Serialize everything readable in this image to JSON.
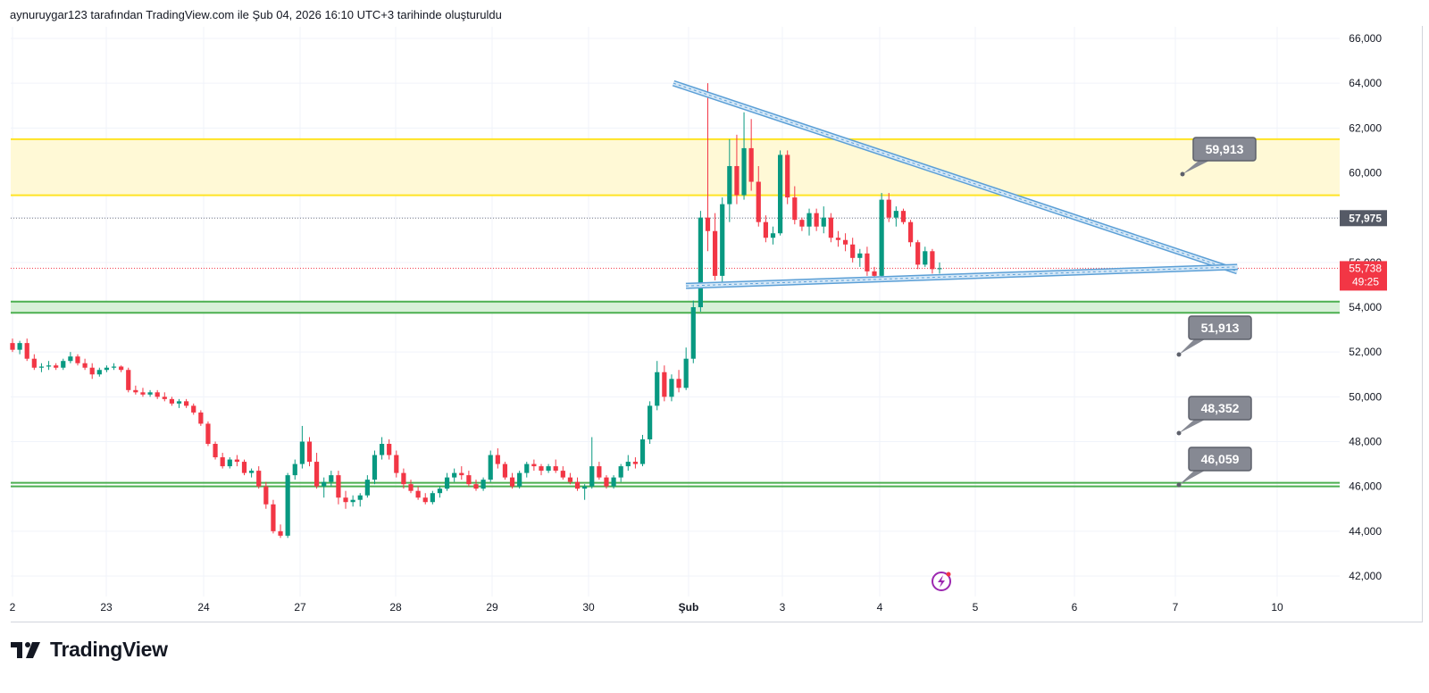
{
  "header": {
    "text": "aynuruygar123 tarafından TradingView.com ile Şub 04, 2026 16:10 UTC+3 tarihinde oluşturuldu"
  },
  "footer": {
    "brand": "TradingView",
    "logo_icon": "tradingview-logo-icon"
  },
  "colors": {
    "up": "#089981",
    "down": "#f23645",
    "resistance_zone": "#fff9d6",
    "resistance_line": "#ffe324",
    "support_zone": "#d8f0d8",
    "support_line": "#4caf50",
    "trendline": "#5b9fd6",
    "label_bg": "#868993"
  },
  "chart_data": {
    "type": "candlestick",
    "price_axis": {
      "ticks": [
        "66,000",
        "64,000",
        "62,000",
        "60,000",
        "58,000",
        "56,000",
        "54,000",
        "52,000",
        "50,000",
        "48,000",
        "46,000",
        "44,000",
        "42,000"
      ],
      "ylim": [
        41200,
        66600
      ]
    },
    "time_axis": {
      "ticks": [
        "2",
        "23",
        "24",
        "27",
        "28",
        "29",
        "30",
        "Şub",
        "3",
        "4",
        "5",
        "6",
        "7",
        "10"
      ]
    },
    "last_close": {
      "price": "55,738",
      "countdown": "49:25"
    },
    "previous_close_marker": "57,975",
    "price_labels": [
      "59,913",
      "51,913",
      "48,352",
      "46,059"
    ],
    "zones": [
      {
        "name": "resistance",
        "low": 59000,
        "high": 61500
      },
      {
        "name": "support",
        "low": 53750,
        "high": 54250
      }
    ],
    "horizontal_levels": [
      46059
    ],
    "triangle": {
      "upper": {
        "from": [
          0,
          64000
        ],
        "to": [
          5.7,
          55600
        ]
      },
      "lower": {
        "from": [
          0,
          54950
        ],
        "to": [
          5.7,
          55800
        ]
      }
    },
    "candles_ohlc": [
      [
        52400,
        52600,
        52000,
        52100
      ],
      [
        52100,
        52500,
        51900,
        52400
      ],
      [
        52400,
        52600,
        51600,
        51700
      ],
      [
        51700,
        51900,
        51200,
        51300
      ],
      [
        51300,
        51500,
        51100,
        51350
      ],
      [
        51350,
        51600,
        51200,
        51400
      ],
      [
        51400,
        51500,
        51200,
        51300
      ],
      [
        51300,
        51700,
        51200,
        51600
      ],
      [
        51600,
        52000,
        51500,
        51800
      ],
      [
        51800,
        51900,
        51400,
        51500
      ],
      [
        51500,
        51700,
        51200,
        51300
      ],
      [
        51300,
        51500,
        50800,
        51000
      ],
      [
        51000,
        51300,
        50900,
        51200
      ],
      [
        51200,
        51400,
        51100,
        51300
      ],
      [
        51300,
        51500,
        51200,
        51350
      ],
      [
        51350,
        51400,
        51100,
        51200
      ],
      [
        51200,
        51300,
        50200,
        50300
      ],
      [
        50300,
        50500,
        50100,
        50200
      ],
      [
        50200,
        50400,
        50000,
        50100
      ],
      [
        50100,
        50300,
        50000,
        50200
      ],
      [
        50200,
        50300,
        49900,
        50000
      ],
      [
        50000,
        50200,
        49800,
        49900
      ],
      [
        49900,
        50000,
        49600,
        49700
      ],
      [
        49700,
        49900,
        49500,
        49800
      ],
      [
        49800,
        49900,
        49500,
        49600
      ],
      [
        49600,
        49700,
        49200,
        49300
      ],
      [
        49300,
        49400,
        48700,
        48800
      ],
      [
        48800,
        48900,
        47800,
        47900
      ],
      [
        47900,
        48000,
        47200,
        47300
      ],
      [
        47300,
        47500,
        46800,
        46900
      ],
      [
        46900,
        47300,
        46800,
        47200
      ],
      [
        47200,
        47400,
        46900,
        47100
      ],
      [
        47100,
        47200,
        46500,
        46600
      ],
      [
        46600,
        46800,
        46400,
        46700
      ],
      [
        46700,
        46900,
        45900,
        46000
      ],
      [
        46000,
        46200,
        45000,
        45200
      ],
      [
        45200,
        45400,
        43900,
        44000
      ],
      [
        44000,
        44300,
        43700,
        43800
      ],
      [
        43800,
        46600,
        43700,
        46500
      ],
      [
        46500,
        47200,
        46300,
        47000
      ],
      [
        47000,
        48700,
        46800,
        48000
      ],
      [
        48000,
        48200,
        46900,
        47100
      ],
      [
        47100,
        47500,
        45900,
        46000
      ],
      [
        46000,
        46400,
        45500,
        46200
      ],
      [
        46200,
        46700,
        46000,
        46500
      ],
      [
        46500,
        46700,
        45200,
        45500
      ],
      [
        45500,
        45800,
        45000,
        45300
      ],
      [
        45300,
        45600,
        45100,
        45400
      ],
      [
        45400,
        45700,
        45100,
        45600
      ],
      [
        45600,
        46500,
        45500,
        46300
      ],
      [
        46300,
        47600,
        46100,
        47400
      ],
      [
        47400,
        48200,
        47200,
        47900
      ],
      [
        47900,
        48100,
        47200,
        47400
      ],
      [
        47400,
        47600,
        46400,
        46600
      ],
      [
        46600,
        46800,
        45900,
        46100
      ],
      [
        46100,
        46300,
        45700,
        45800
      ],
      [
        45800,
        46000,
        45400,
        45500
      ],
      [
        45500,
        45700,
        45200,
        45300
      ],
      [
        45300,
        45800,
        45200,
        45700
      ],
      [
        45700,
        46000,
        45500,
        45900
      ],
      [
        45900,
        46600,
        45800,
        46400
      ],
      [
        46400,
        46800,
        46200,
        46600
      ],
      [
        46600,
        46900,
        46300,
        46500
      ],
      [
        46500,
        46700,
        46000,
        46100
      ],
      [
        46100,
        46300,
        45800,
        45900
      ],
      [
        45900,
        46400,
        45800,
        46300
      ],
      [
        46300,
        47600,
        46200,
        47400
      ],
      [
        47400,
        47700,
        46800,
        47000
      ],
      [
        47000,
        47100,
        46300,
        46400
      ],
      [
        46400,
        46600,
        45900,
        46000
      ],
      [
        46000,
        46700,
        45900,
        46600
      ],
      [
        46600,
        47100,
        46400,
        47000
      ],
      [
        47000,
        47200,
        46700,
        46900
      ],
      [
        46900,
        47000,
        46500,
        46700
      ],
      [
        46700,
        47000,
        46600,
        46900
      ],
      [
        46900,
        47200,
        46600,
        46700
      ],
      [
        46700,
        46900,
        46300,
        46400
      ],
      [
        46400,
        46600,
        46100,
        46200
      ],
      [
        46200,
        46400,
        45800,
        45900
      ],
      [
        45900,
        46100,
        45400,
        46000
      ],
      [
        46000,
        48200,
        45900,
        46900
      ],
      [
        46900,
        47100,
        46300,
        46400
      ],
      [
        46400,
        46500,
        45900,
        46000
      ],
      [
        46000,
        46500,
        45900,
        46400
      ],
      [
        46400,
        47000,
        46200,
        46900
      ],
      [
        46900,
        47400,
        46700,
        47100
      ],
      [
        47100,
        47300,
        46800,
        47000
      ],
      [
        47000,
        48300,
        46900,
        48100
      ],
      [
        48100,
        49800,
        47900,
        49600
      ],
      [
        49600,
        51600,
        49400,
        51100
      ],
      [
        51100,
        51400,
        49800,
        50000
      ],
      [
        50000,
        51000,
        49800,
        50800
      ],
      [
        50800,
        51200,
        50200,
        50400
      ],
      [
        50400,
        52200,
        50300,
        51700
      ],
      [
        51700,
        54300,
        51500,
        54000
      ],
      [
        54000,
        58300,
        53800,
        58000
      ],
      [
        58000,
        64000,
        56500,
        57400
      ],
      [
        57400,
        58200,
        55200,
        55400
      ],
      [
        55400,
        58900,
        55100,
        58600
      ],
      [
        58600,
        61500,
        57800,
        60300
      ],
      [
        60300,
        61700,
        58600,
        59000
      ],
      [
        59000,
        62700,
        58800,
        61100
      ],
      [
        61100,
        62400,
        59200,
        59600
      ],
      [
        59600,
        60300,
        57600,
        57800
      ],
      [
        57800,
        58100,
        56900,
        57100
      ],
      [
        57100,
        57600,
        56800,
        57300
      ],
      [
        57300,
        61000,
        57200,
        60800
      ],
      [
        60800,
        61000,
        58600,
        58900
      ],
      [
        58900,
        59400,
        57700,
        57900
      ],
      [
        57900,
        58000,
        57400,
        57600
      ],
      [
        57600,
        58400,
        57200,
        58200
      ],
      [
        58200,
        58400,
        57400,
        57600
      ],
      [
        57600,
        58500,
        57300,
        58000
      ],
      [
        58000,
        58200,
        56900,
        57100
      ],
      [
        57100,
        57400,
        56700,
        57000
      ],
      [
        57000,
        57300,
        56500,
        56800
      ],
      [
        56800,
        57100,
        56000,
        56200
      ],
      [
        56200,
        56600,
        55800,
        56400
      ],
      [
        56400,
        56700,
        55400,
        55600
      ],
      [
        55600,
        55800,
        55200,
        55400
      ],
      [
        55400,
        59100,
        55300,
        58800
      ],
      [
        58800,
        59100,
        57800,
        58000
      ],
      [
        58000,
        58500,
        57600,
        58300
      ],
      [
        58300,
        58400,
        57700,
        57800
      ],
      [
        57800,
        57900,
        56700,
        56900
      ],
      [
        56900,
        57000,
        55700,
        55900
      ],
      [
        55900,
        56700,
        55800,
        56500
      ],
      [
        56500,
        56600,
        55500,
        55700
      ],
      [
        55700,
        56000,
        55500,
        55738
      ]
    ]
  }
}
